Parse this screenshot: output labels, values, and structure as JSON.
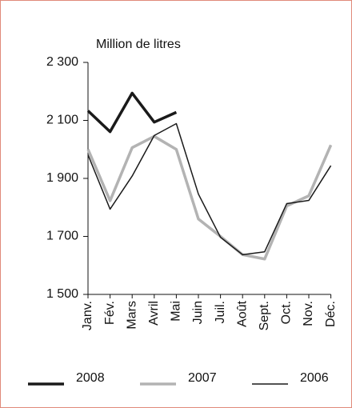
{
  "chart_data": {
    "type": "line",
    "y_label": "Million de litres",
    "categories": [
      "Janv.",
      "Fév.",
      "Mars",
      "Avril",
      "Mai",
      "Juin",
      "Juil.",
      "Août",
      "Sept.",
      "Oct.",
      "Nov.",
      "Déc."
    ],
    "series": [
      {
        "name": "2008",
        "color": "#1a1a1a",
        "width": 3.5,
        "values": [
          2133,
          2061,
          2194,
          2094,
          2128,
          null,
          null,
          null,
          null,
          null,
          null,
          null
        ]
      },
      {
        "name": "2007",
        "color": "#b3b3b3",
        "width": 3.5,
        "values": [
          2000,
          1823,
          2006,
          2045,
          2000,
          1760,
          1700,
          1637,
          1622,
          1805,
          1840,
          2015
        ]
      },
      {
        "name": "2006",
        "color": "#1a1a1a",
        "width": 1.5,
        "values": [
          1981,
          1794,
          1908,
          2048,
          2089,
          1846,
          1697,
          1637,
          1647,
          1813,
          1824,
          1944
        ]
      }
    ],
    "ylim": [
      1500,
      2300
    ],
    "yticks": [
      {
        "value": 1500,
        "label": "1 500"
      },
      {
        "value": 1700,
        "label": "1 700"
      },
      {
        "value": 1900,
        "label": "1 900"
      },
      {
        "value": 2100,
        "label": "2 100"
      },
      {
        "value": 2300,
        "label": "2 300"
      }
    ],
    "grid": false,
    "legend": "bottom"
  }
}
